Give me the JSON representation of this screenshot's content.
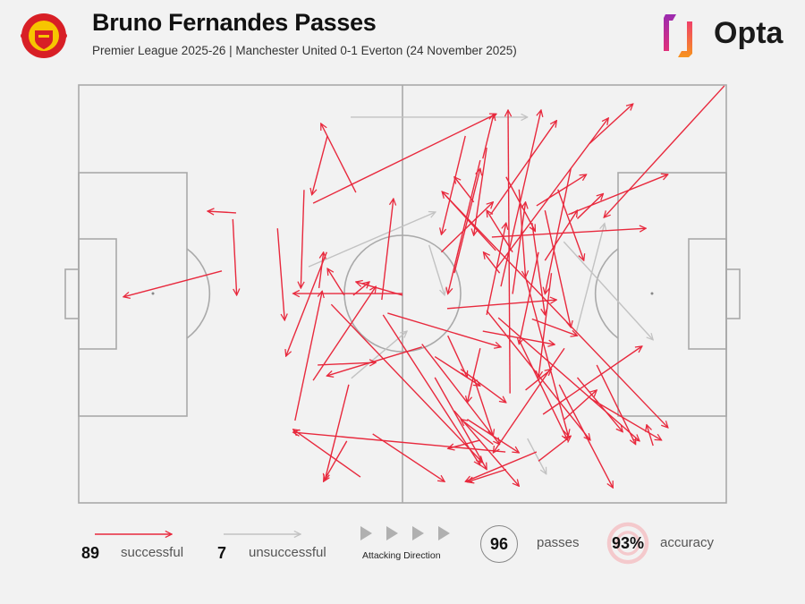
{
  "header": {
    "title": "Bruno Fernandes Passes",
    "subtitle": "Premier League 2025-26 | Manchester United 0-1 Everton (24 November 2025)",
    "club_crest": "Manchester United",
    "brand_logo": "Opta"
  },
  "colors": {
    "successful": "#e8293d",
    "unsuccessful": "#c2c2c2",
    "background": "#f2f2f2",
    "pitch_lines": "#a9a9a9"
  },
  "legend": {
    "successful_count": "89",
    "successful_label": "successful",
    "unsuccessful_count": "7",
    "unsuccessful_label": "unsuccessful",
    "direction_label": "Attacking Direction",
    "total_passes": "96",
    "passes_label": "passes",
    "accuracy": "93%",
    "accuracy_label": "accuracy"
  },
  "chart_data": {
    "type": "pass-map",
    "pitch_units": "Opta 0-100 (x: own goal to opponent goal, y: top to bottom touchline)",
    "attacking_direction": "left-to-right",
    "unsuccessful": [
      [
        42,
        7.7,
        69.3,
        7.7
      ],
      [
        35.5,
        43.5,
        55.1,
        30.4
      ],
      [
        54.1,
        38.3,
        56.5,
        50.3
      ],
      [
        42.1,
        70.2,
        50.7,
        58.9
      ],
      [
        76.7,
        60,
        81.2,
        33.1
      ],
      [
        74.9,
        37.5,
        88.7,
        61
      ],
      [
        69.3,
        84.6,
        72.2,
        93.1
      ]
    ],
    "successful": [
      [
        36.2,
        28.3,
        64.5,
        6.9
      ],
      [
        42.8,
        25.7,
        37.4,
        9.2
      ],
      [
        38.4,
        12.2,
        36,
        26.3
      ],
      [
        24.3,
        30.6,
        19.9,
        30.2
      ],
      [
        23.8,
        32.1,
        24.4,
        50.3
      ],
      [
        22.1,
        44.5,
        6.9,
        50.7
      ],
      [
        30.7,
        34.3,
        31.8,
        56.3
      ],
      [
        34.8,
        25.1,
        34.3,
        48.6
      ],
      [
        50,
        49.9,
        33.1,
        49.9
      ],
      [
        46.8,
        51.4,
        48.6,
        27.2
      ],
      [
        38.3,
        40,
        32,
        64.9
      ],
      [
        37.1,
        48.6,
        37.8,
        40
      ],
      [
        41,
        50.3,
        38.4,
        43.9
      ],
      [
        42.4,
        50.3,
        44.9,
        47.1
      ],
      [
        50,
        50.3,
        42.8,
        47.1
      ],
      [
        36.2,
        70.7,
        45.9,
        48.2
      ],
      [
        36.9,
        67,
        45.9,
        66.4
      ],
      [
        53,
        62.7,
        38.3,
        69.6
      ],
      [
        33.4,
        80.3,
        37.6,
        49.3
      ],
      [
        41.7,
        71.7,
        38,
        94.6
      ],
      [
        45.4,
        83.5,
        56.5,
        94.9
      ],
      [
        43.5,
        93.8,
        33.1,
        82.4
      ],
      [
        65.9,
        87.8,
        33.1,
        83.1
      ],
      [
        41.4,
        85.2,
        37.8,
        94.9
      ],
      [
        39,
        52.5,
        62.4,
        90.4
      ],
      [
        47,
        55,
        62,
        91
      ],
      [
        47.7,
        54.6,
        65.2,
        62.7
      ],
      [
        70.7,
        87.8,
        59.7,
        94.9
      ],
      [
        56.2,
        25.7,
        91,
        82
      ],
      [
        62.4,
        17.6,
        64.1,
        6.9
      ],
      [
        64.5,
        43.9,
        81.8,
        7.9
      ],
      [
        78.9,
        14,
        85.6,
        4.5
      ],
      [
        65.2,
        48.2,
        71.4,
        6
      ],
      [
        63.6,
        31,
        73.8,
        8.5
      ],
      [
        66.6,
        73.8,
        66.3,
        6
      ],
      [
        99.7,
        0.2,
        81.1,
        31.7
      ],
      [
        75.6,
        31,
        91,
        21.4
      ],
      [
        63.8,
        36.4,
        87.6,
        34.3
      ],
      [
        70.7,
        28.9,
        78.4,
        21.4
      ],
      [
        71.7,
        78.8,
        87,
        62.5
      ],
      [
        88.7,
        86.3,
        87.7,
        81.3
      ],
      [
        64.8,
        55.7,
        86.6,
        85.2
      ],
      [
        74.2,
        71.7,
        82.5,
        96.4
      ],
      [
        63,
        54,
        79,
        85
      ],
      [
        68,
        61,
        75.5,
        85
      ],
      [
        69,
        46,
        75.6,
        84
      ],
      [
        75,
        63,
        64,
        88
      ],
      [
        59.7,
        12.2,
        56,
        35.8
      ],
      [
        62,
        18,
        57,
        50
      ],
      [
        64.4,
        39.6,
        56.1,
        25.5
      ],
      [
        53,
        62,
        65,
        86
      ],
      [
        55,
        70,
        63,
        92
      ],
      [
        58,
        78,
        68,
        96
      ],
      [
        62.4,
        58.9,
        73.5,
        62.1
      ],
      [
        56.9,
        53.5,
        73.8,
        51.4
      ],
      [
        63,
        15,
        61,
        36
      ],
      [
        66,
        22,
        70.5,
        35
      ],
      [
        68,
        25,
        69,
        46
      ],
      [
        70,
        33,
        72,
        55
      ],
      [
        71,
        40,
        68,
        62
      ],
      [
        73,
        45,
        71,
        70
      ],
      [
        72,
        30,
        76,
        58
      ],
      [
        74,
        25,
        78,
        42
      ],
      [
        76,
        20,
        72,
        50
      ],
      [
        77,
        32,
        81,
        26
      ],
      [
        67,
        40,
        63,
        30
      ],
      [
        61,
        70,
        64,
        84
      ],
      [
        64,
        86,
        59,
        80
      ],
      [
        66,
        92,
        60,
        95
      ],
      [
        62,
        85,
        57,
        87
      ],
      [
        59,
        68,
        66,
        76
      ],
      [
        60,
        80,
        68,
        88
      ],
      [
        55,
        65,
        62,
        72
      ],
      [
        69,
        73,
        73,
        68
      ],
      [
        75,
        80,
        80,
        73
      ],
      [
        77,
        70,
        84,
        83
      ],
      [
        79,
        75,
        90,
        85
      ],
      [
        80,
        67,
        86,
        86
      ],
      [
        71,
        90,
        76,
        84
      ],
      [
        65,
        45,
        62.5,
        40
      ],
      [
        63,
        55,
        66,
        33
      ],
      [
        58,
        45,
        62,
        20
      ],
      [
        61,
        28,
        58,
        22
      ],
      [
        56,
        40,
        64,
        28
      ],
      [
        67,
        50,
        69,
        28
      ],
      [
        72,
        42,
        77,
        30
      ],
      [
        62,
        63,
        60,
        76
      ],
      [
        57,
        60,
        60,
        70
      ],
      [
        70,
        56,
        77,
        60
      ]
    ]
  }
}
